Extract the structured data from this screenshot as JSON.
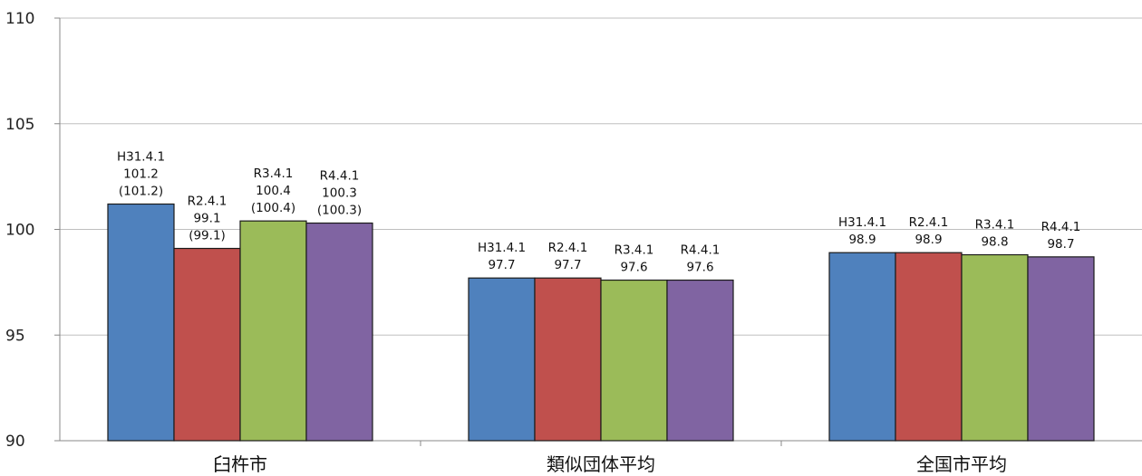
{
  "chart_data": {
    "type": "bar",
    "title": "",
    "xlabel": "",
    "ylabel": "",
    "ylim": [
      90,
      110
    ],
    "yticks": [
      90,
      95,
      100,
      105,
      110
    ],
    "grid": true,
    "categories": [
      "臼杵市",
      "類似団体平均",
      "全国市平均"
    ],
    "series": [
      {
        "name": "H31.4.1",
        "color": "#4f81bd",
        "values": [
          101.2,
          97.7,
          98.9
        ],
        "labels": [
          [
            "H31.4.1",
            "101.2",
            "(101.2)"
          ],
          [
            "H31.4.1",
            "97.7"
          ],
          [
            "H31.4.1",
            "98.9"
          ]
        ]
      },
      {
        "name": "R2.4.1",
        "color": "#c0504d",
        "values": [
          99.1,
          97.7,
          98.9
        ],
        "labels": [
          [
            "R2.4.1",
            "99.1",
            "(99.1)"
          ],
          [
            "R2.4.1",
            "97.7"
          ],
          [
            "R2.4.1",
            "98.9"
          ]
        ]
      },
      {
        "name": "R3.4.1",
        "color": "#9bbb59",
        "values": [
          100.4,
          97.6,
          98.8
        ],
        "labels": [
          [
            "R3.4.1",
            "100.4",
            "(100.4)"
          ],
          [
            "R3.4.1",
            "97.6"
          ],
          [
            "R3.4.1",
            "98.8"
          ]
        ]
      },
      {
        "name": "R4.4.1",
        "color": "#8064a2",
        "values": [
          100.3,
          97.6,
          98.7
        ],
        "labels": [
          [
            "R4.4.1",
            "100.3",
            "(100.3)"
          ],
          [
            "R4.4.1",
            "97.6"
          ],
          [
            "R4.4.1",
            "98.7"
          ]
        ]
      }
    ]
  }
}
